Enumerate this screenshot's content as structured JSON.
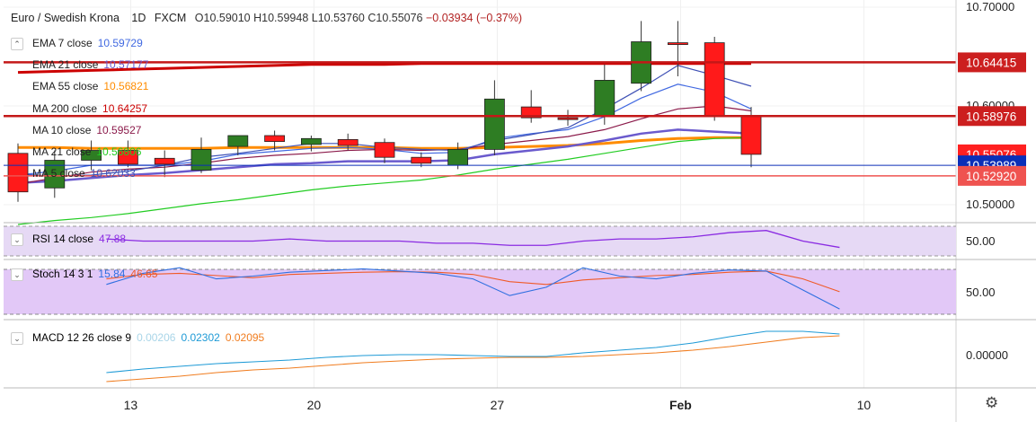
{
  "header": {
    "symbol": "Euro / Swedish Krona",
    "interval": "1D",
    "exchange": "FXCM",
    "open": "O10.59010",
    "high": "H10.59948",
    "low": "L10.53760",
    "close": "C10.55076",
    "change": "−0.03934 (−0.37%)"
  },
  "legend": [
    {
      "label": "EMA 7 close",
      "value": "10.59729",
      "color": "#4169e1"
    },
    {
      "label": "EMA 21 close",
      "value": "10.57177",
      "color": "#6a5acd"
    },
    {
      "label": "EMA 55 close",
      "value": "10.56821",
      "color": "#ff8c00"
    },
    {
      "label": "MA 200 close",
      "value": "10.64257",
      "color": "#cc0000"
    },
    {
      "label": "MA 10 close",
      "value": "10.59527",
      "color": "#8b1a4a"
    },
    {
      "label": "MA 21 close",
      "value": "10.56806",
      "color": "#22cc22"
    },
    {
      "label": "MA 5 close",
      "value": "10.62033",
      "color": "#3f51b5"
    }
  ],
  "rsi": {
    "label": "RSI 14 close",
    "value": "47.88",
    "color": "#8a2be2",
    "axis_label": "50.00"
  },
  "stoch": {
    "label": "Stoch 14 3 1",
    "k": "15.84",
    "d": "46.65",
    "k_color": "#2f6fe0",
    "d_color": "#f05a28",
    "axis_label": "50.00"
  },
  "macd": {
    "label": "MACD 12 26 close 9",
    "hist": "0.00206",
    "macd": "0.02302",
    "signal": "0.02095",
    "hist_color": "#a9d5e8",
    "macd_color": "#1e9ad6",
    "signal_color": "#f07d20",
    "axis_label": "0.00000"
  },
  "price_axis": {
    "top_tick": "10.70000",
    "tick_2": "10.60000",
    "tick_3": "10.50000",
    "tags": [
      {
        "label": "10.64415",
        "bg": "#cc1f1f"
      },
      {
        "label": "10.58976",
        "bg": "#cc1f1f"
      },
      {
        "label": "10.55076",
        "bg": "#ff2020"
      },
      {
        "label": "10.53989",
        "bg": "#0b2fb8"
      },
      {
        "label": "10.52920",
        "bg": "#ef5350"
      }
    ]
  },
  "time_axis": [
    "13",
    "20",
    "27",
    "Feb",
    "10"
  ],
  "colors": {
    "bull": "#2e7d23",
    "bear": "#ff1a1a",
    "hline": "#c41818",
    "bullLight": "#8fbf88",
    "bearLight": "#f59a9a"
  },
  "chart_data": {
    "type": "candlestick",
    "price_ylim": [
      10.5,
      10.7
    ],
    "horizontal_levels": [
      10.64415,
      10.58976,
      10.5292,
      10.53989
    ],
    "candles": [
      {
        "o": 10.552,
        "h": 10.562,
        "l": 10.503,
        "c": 10.513
      },
      {
        "o": 10.517,
        "h": 10.555,
        "l": 10.507,
        "c": 10.545
      },
      {
        "o": 10.545,
        "h": 10.565,
        "l": 10.535,
        "c": 10.555
      },
      {
        "o": 10.555,
        "h": 10.565,
        "l": 10.538,
        "c": 10.541
      },
      {
        "o": 10.547,
        "h": 10.555,
        "l": 10.528,
        "c": 10.541
      },
      {
        "o": 10.535,
        "h": 10.568,
        "l": 10.532,
        "c": 10.556
      },
      {
        "o": 10.559,
        "h": 10.57,
        "l": 10.55,
        "c": 10.57
      },
      {
        "o": 10.57,
        "h": 10.575,
        "l": 10.555,
        "c": 10.564
      },
      {
        "o": 10.561,
        "h": 10.57,
        "l": 10.554,
        "c": 10.567
      },
      {
        "o": 10.566,
        "h": 10.572,
        "l": 10.555,
        "c": 10.56
      },
      {
        "o": 10.563,
        "h": 10.567,
        "l": 10.542,
        "c": 10.548
      },
      {
        "o": 10.548,
        "h": 10.553,
        "l": 10.538,
        "c": 10.542
      },
      {
        "o": 10.54,
        "h": 10.563,
        "l": 10.536,
        "c": 10.556
      },
      {
        "o": 10.556,
        "h": 10.626,
        "l": 10.55,
        "c": 10.607
      },
      {
        "o": 10.599,
        "h": 10.616,
        "l": 10.583,
        "c": 10.588
      },
      {
        "o": 10.588,
        "h": 10.596,
        "l": 10.58,
        "c": 10.587
      },
      {
        "o": 10.589,
        "h": 10.642,
        "l": 10.581,
        "c": 10.626
      },
      {
        "o": 10.623,
        "h": 10.686,
        "l": 10.615,
        "c": 10.665
      },
      {
        "o": 10.664,
        "h": 10.686,
        "l": 10.63,
        "c": 10.663
      },
      {
        "o": 10.664,
        "h": 10.67,
        "l": 10.585,
        "c": 10.59
      },
      {
        "o": 10.59,
        "h": 10.599,
        "l": 10.538,
        "c": 10.551
      }
    ],
    "overlays": [
      {
        "name": "MA 200 close",
        "color": "#cc0000",
        "values": [
          10.634,
          10.635,
          10.636,
          10.637,
          10.638,
          10.639,
          10.64,
          10.641,
          10.642,
          10.642,
          10.642,
          10.643,
          10.643,
          10.643,
          10.643,
          10.643,
          10.643,
          10.643,
          10.643,
          10.643,
          10.643
        ]
      },
      {
        "name": "EMA 55 close",
        "color": "#ff8c00",
        "values": [
          10.558,
          10.558,
          10.557,
          10.557,
          10.557,
          10.557,
          10.558,
          10.558,
          10.558,
          10.558,
          10.558,
          10.557,
          10.557,
          10.558,
          10.559,
          10.56,
          10.562,
          10.565,
          10.567,
          10.568,
          10.568
        ]
      },
      {
        "name": "EMA 21 close",
        "color": "#6a5acd",
        "values": [
          10.522,
          10.524,
          10.527,
          10.53,
          10.532,
          10.535,
          10.538,
          10.541,
          10.542,
          10.544,
          10.544,
          10.544,
          10.545,
          10.551,
          10.555,
          10.559,
          10.565,
          10.572,
          10.576,
          10.574,
          10.572
        ]
      },
      {
        "name": "MA 21 close",
        "color": "#22cc22",
        "values": [
          10.48,
          10.484,
          10.487,
          10.491,
          10.496,
          10.501,
          10.505,
          10.51,
          10.515,
          10.519,
          10.522,
          10.525,
          10.53,
          10.536,
          10.541,
          10.546,
          10.552,
          10.558,
          10.564,
          10.567,
          10.568
        ]
      },
      {
        "name": "EMA 7 close",
        "color": "#4169e1",
        "values": [
          10.53,
          10.534,
          10.54,
          10.54,
          10.54,
          10.544,
          10.551,
          10.554,
          10.557,
          10.558,
          10.556,
          10.552,
          10.553,
          10.567,
          10.572,
          10.576,
          10.589,
          10.608,
          10.622,
          10.614,
          10.597
        ]
      },
      {
        "name": "MA 10 close",
        "color": "#8b1a4a",
        "values": [
          10.521,
          10.527,
          10.533,
          10.536,
          10.538,
          10.542,
          10.547,
          10.55,
          10.552,
          10.555,
          10.556,
          10.555,
          10.556,
          10.561,
          10.565,
          10.569,
          10.576,
          10.587,
          10.597,
          10.6,
          10.595
        ]
      },
      {
        "name": "MA 5 close",
        "color": "#3f51b5",
        "values": [
          10.531,
          10.529,
          10.53,
          10.534,
          10.54,
          10.548,
          10.552,
          10.557,
          10.562,
          10.562,
          10.558,
          10.556,
          10.555,
          10.565,
          10.571,
          10.578,
          10.597,
          10.618,
          10.641,
          10.631,
          10.62
        ]
      }
    ],
    "rsi_values": [
      52,
      51,
      51,
      51,
      51,
      52,
      51,
      51,
      51,
      50,
      50,
      49,
      49,
      51,
      52,
      52,
      53,
      55,
      56,
      51,
      48
    ],
    "stoch_k": [
      60,
      80,
      90,
      70,
      75,
      82,
      85,
      88,
      84,
      80,
      70,
      40,
      55,
      90,
      75,
      70,
      80,
      86,
      84,
      50,
      16
    ],
    "stoch_d": [
      70,
      78,
      80,
      76,
      72,
      78,
      80,
      82,
      83,
      82,
      78,
      65,
      60,
      68,
      72,
      76,
      78,
      82,
      84,
      70,
      47
    ],
    "macd_values": [
      -0.02,
      -0.016,
      -0.013,
      -0.01,
      -0.008,
      -0.006,
      -0.003,
      -0.001,
      0.0,
      0.0,
      -0.001,
      -0.002,
      -0.002,
      0.002,
      0.005,
      0.008,
      0.013,
      0.02,
      0.026,
      0.026,
      0.023
    ],
    "signal_values": [
      -0.03,
      -0.027,
      -0.024,
      -0.02,
      -0.017,
      -0.015,
      -0.012,
      -0.009,
      -0.007,
      -0.005,
      -0.004,
      -0.003,
      -0.003,
      -0.002,
      0.0,
      0.002,
      0.005,
      0.009,
      0.014,
      0.019,
      0.021
    ]
  }
}
